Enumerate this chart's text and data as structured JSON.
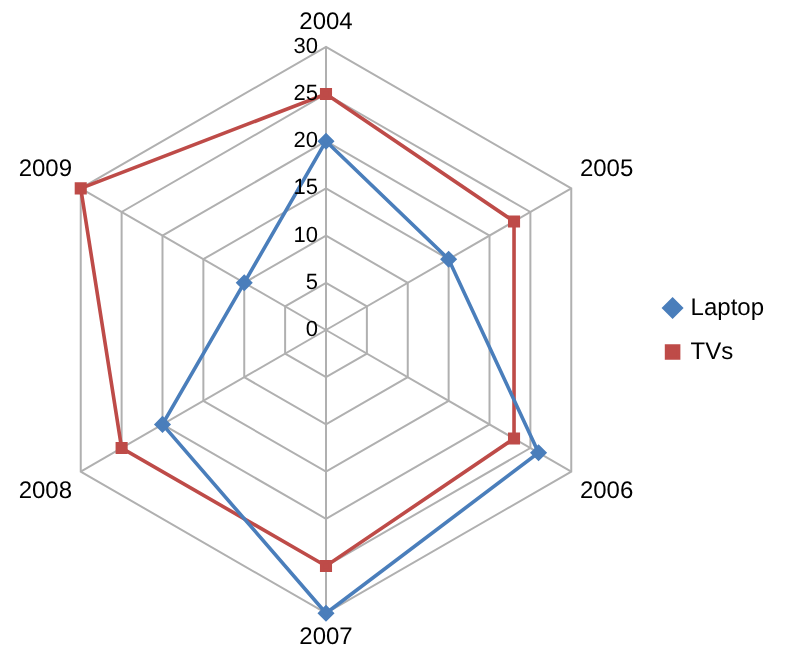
{
  "chart_data": {
    "type": "radar",
    "categories": [
      "2004",
      "2005",
      "2006",
      "2007",
      "2008",
      "2009"
    ],
    "series": [
      {
        "name": "Laptop",
        "color": "#4a7ebb",
        "marker": "diamond",
        "values": [
          20,
          15,
          26,
          30,
          20,
          10
        ]
      },
      {
        "name": "TVs",
        "color": "#be4b48",
        "marker": "square",
        "values": [
          25,
          23,
          23,
          25,
          25,
          30
        ]
      }
    ],
    "ylim": [
      0,
      30
    ],
    "yticks": [
      0,
      5,
      10,
      15,
      20,
      25,
      30
    ],
    "grid": true,
    "legend": "right"
  }
}
